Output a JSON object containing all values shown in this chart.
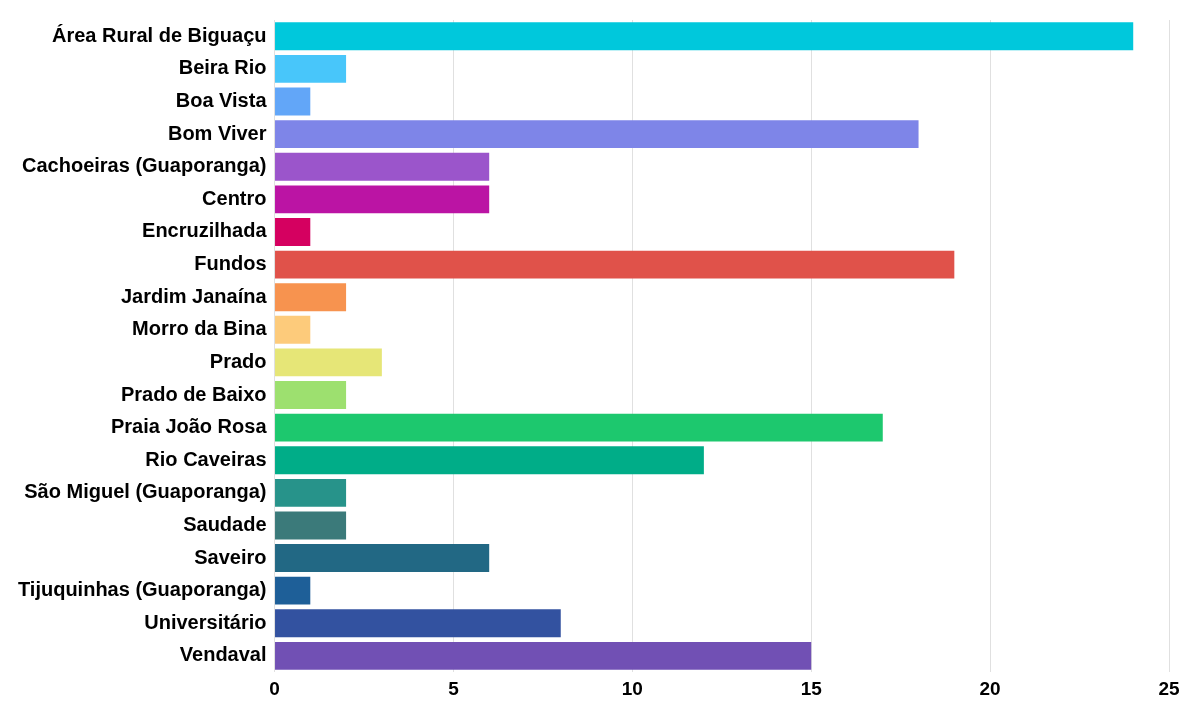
{
  "chart_data": {
    "type": "bar",
    "orientation": "horizontal",
    "categories": [
      "Área Rural de Biguaçu",
      "Beira Rio",
      "Boa Vista",
      "Bom Viver",
      "Cachoeiras (Guaporanga)",
      "Centro",
      "Encruzilhada",
      "Fundos",
      "Jardim Janaína",
      "Morro da Bina",
      "Prado",
      "Prado de Baixo",
      "Praia João Rosa",
      "Rio Caveiras",
      "São Miguel (Guaporanga)",
      "Saudade",
      "Saveiro",
      "Tijuquinhas (Guaporanga)",
      "Universitário",
      "Vendaval"
    ],
    "values": [
      24,
      2,
      1,
      18,
      6,
      6,
      1,
      19,
      2,
      1,
      3,
      2,
      17,
      12,
      2,
      2,
      6,
      1,
      8,
      15
    ],
    "colors": [
      "#00c8dc",
      "#48c6fa",
      "#62a6f8",
      "#7e85e8",
      "#9b55cb",
      "#bb14a4",
      "#d50060",
      "#e0524a",
      "#f7934f",
      "#fdcb7b",
      "#e6e677",
      "#9de06f",
      "#1dc86e",
      "#00ad88",
      "#27938a",
      "#3b7a7a",
      "#226884",
      "#1e5f98",
      "#3352a0",
      "#7150b4"
    ],
    "xlim": [
      0,
      25
    ],
    "xticks": [
      0,
      5,
      10,
      15,
      20,
      25
    ],
    "grid": "x",
    "legend": false
  }
}
